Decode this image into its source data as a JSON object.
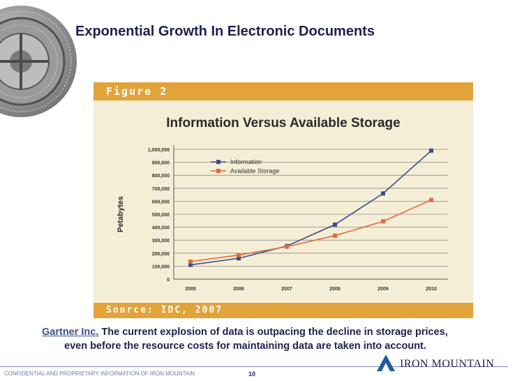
{
  "slide": {
    "title": "Exponential Growth In Electronic Documents",
    "caption_source": "Gartner Inc.",
    "caption_line1": "The current explosion of data is outpacing the decline in storage prices,",
    "caption_line2": "even before the resource costs for maintaining data are taken into account.",
    "footer_confidential": "CONFIDENTIAL AND PROPRIETARY INFORMATION OF IRON MOUNTAIN",
    "page_number": "10",
    "brand": "IRON MOUNTAIN",
    "decoration_icon": "bank-vault-icon",
    "logo_icon": "mountain-logo-icon"
  },
  "figure": {
    "label": "Figure 2",
    "source": "Source: IDC, 2007"
  },
  "colors": {
    "title": "#1f1f50",
    "figure_header": "#e2a33a",
    "figure_bg": "#f5eed6",
    "information": "#3c4d8c",
    "available_storage": "#dd6b3c"
  },
  "chart_data": {
    "type": "line",
    "title": "Information Versus Available Storage",
    "xlabel": "",
    "ylabel": "Petabytes",
    "categories": [
      "2005",
      "2006",
      "2007",
      "2008",
      "2009",
      "2010"
    ],
    "yticks": [
      "0",
      "100,000",
      "200,000",
      "300,000",
      "400,000",
      "500,000",
      "600,000",
      "700,000",
      "800,000",
      "900,000",
      "1,000,000"
    ],
    "ylim": [
      0,
      1000000
    ],
    "grid": true,
    "legend": "top-left",
    "series": [
      {
        "name": "Information",
        "values": [
          110000,
          160000,
          255000,
          420000,
          660000,
          990000
        ]
      },
      {
        "name": "Available Storage",
        "values": [
          135000,
          185000,
          250000,
          335000,
          445000,
          610000
        ]
      }
    ]
  }
}
